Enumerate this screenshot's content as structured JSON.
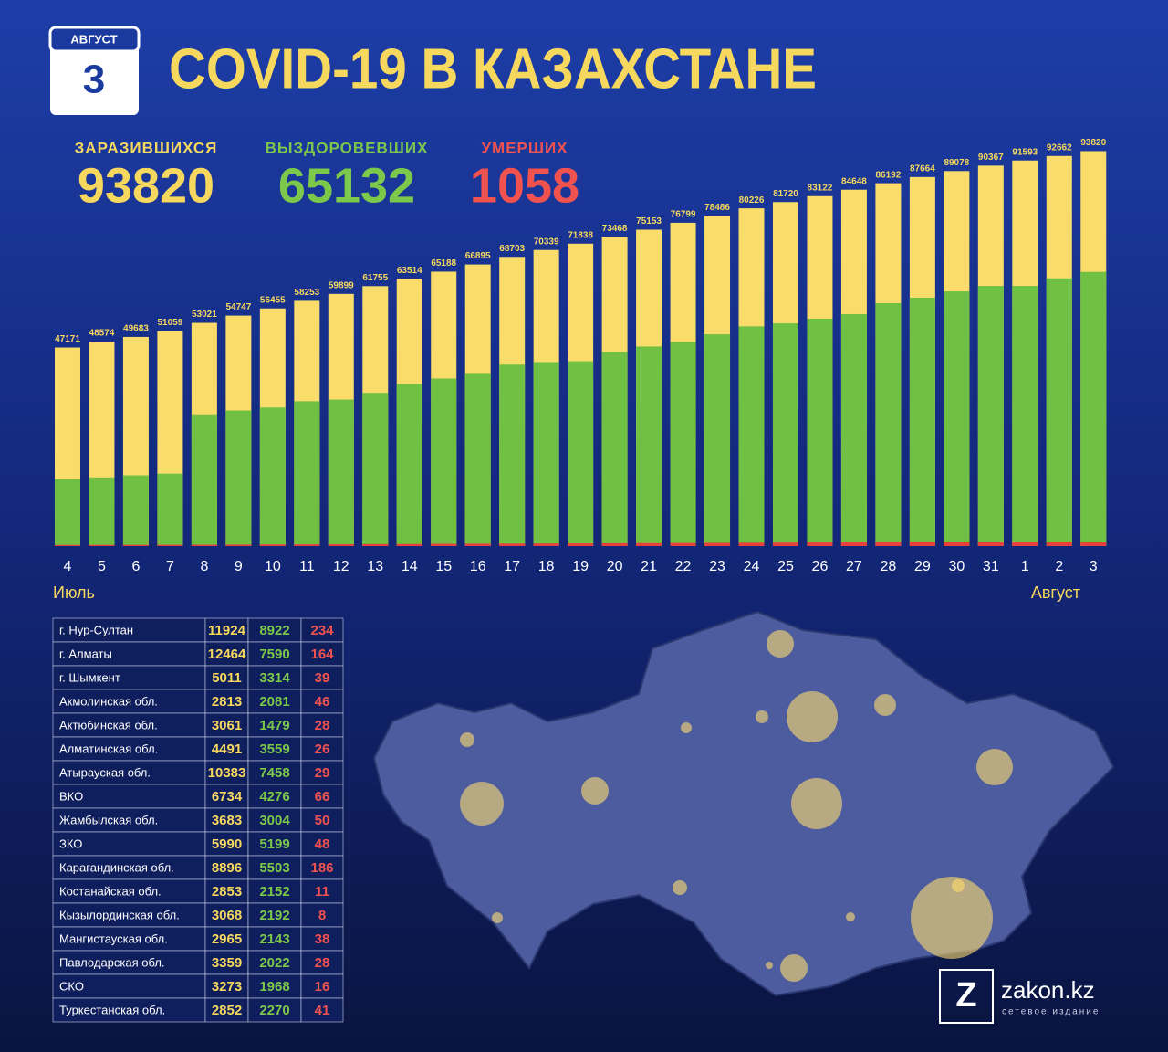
{
  "header": {
    "month": "АВГУСТ",
    "day": "3",
    "title": "COVID-19 В КАЗАХСТАНЕ"
  },
  "summary": [
    {
      "label": "ЗАРАЗИВШИХСЯ",
      "value": 93820,
      "color": "#f7d85e"
    },
    {
      "label": "ВЫЗДОРОВЕВШИХ",
      "value": 65132,
      "color": "#7cc84a"
    },
    {
      "label": "УМЕРШИХ",
      "value": 1058,
      "color": "#f0524f"
    }
  ],
  "chart_data": {
    "type": "bar",
    "categories": [
      "4",
      "5",
      "6",
      "7",
      "8",
      "9",
      "10",
      "11",
      "12",
      "13",
      "14",
      "15",
      "16",
      "17",
      "18",
      "19",
      "20",
      "21",
      "22",
      "23",
      "24",
      "25",
      "26",
      "27",
      "28",
      "29",
      "30",
      "31",
      "1",
      "2",
      "3"
    ],
    "annotations": [
      "Июль",
      "Август"
    ],
    "ylim": [
      0,
      95000
    ],
    "series": [
      {
        "name": "ЗАРАЗИВШИХСЯ",
        "color": "#f9dc6a",
        "labeled": true,
        "values": [
          47171,
          48574,
          49683,
          51059,
          53021,
          54747,
          56455,
          58253,
          59899,
          61755,
          63514,
          65188,
          66895,
          68703,
          70339,
          71838,
          73468,
          75153,
          76799,
          78486,
          80226,
          81720,
          83122,
          84648,
          86192,
          87664,
          89078,
          90367,
          91593,
          92662,
          93820
        ]
      },
      {
        "name": "ВЫЗДОРОВЕВШИХ",
        "color": "#6fc043",
        "values": [
          15900,
          16300,
          16800,
          17200,
          31300,
          32200,
          32900,
          34400,
          34800,
          36400,
          38500,
          39800,
          40900,
          43100,
          43700,
          43900,
          46100,
          47400,
          48500,
          50300,
          52200,
          52900,
          54000,
          55100,
          57700,
          59000,
          60500,
          61800,
          61800,
          63600,
          65132
        ]
      },
      {
        "name": "УМЕРШИХ",
        "color": "#e8403c",
        "values": [
          264,
          275,
          285,
          300,
          320,
          345,
          375,
          410,
          440,
          470,
          500,
          530,
          560,
          585,
          610,
          640,
          670,
          700,
          730,
          760,
          790,
          810,
          840,
          870,
          900,
          930,
          960,
          990,
          1010,
          1035,
          1058
        ]
      }
    ]
  },
  "table": {
    "rows": [
      [
        "г. Нур-Султан",
        11924,
        8922,
        234
      ],
      [
        "г. Алматы",
        12464,
        7590,
        164
      ],
      [
        "г. Шымкент",
        5011,
        3314,
        39
      ],
      [
        "Акмолинская обл.",
        2813,
        2081,
        46
      ],
      [
        "Актюбинская обл.",
        3061,
        1479,
        28
      ],
      [
        "Алматинская обл.",
        4491,
        3559,
        26
      ],
      [
        "Атырауская обл.",
        10383,
        7458,
        29
      ],
      [
        "ВКО",
        6734,
        4276,
        66
      ],
      [
        "Жамбылская обл.",
        3683,
        3004,
        50
      ],
      [
        "ЗКО",
        5990,
        5199,
        48
      ],
      [
        "Карагандинская обл.",
        8896,
        5503,
        186
      ],
      [
        "Костанайская обл.",
        2853,
        2152,
        11
      ],
      [
        "Кызылординская обл.",
        3068,
        2192,
        8
      ],
      [
        "Мангистауская обл.",
        2965,
        2143,
        38
      ],
      [
        "Павлодарская обл.",
        3359,
        2022,
        28
      ],
      [
        "СКО",
        3273,
        1968,
        16
      ],
      [
        "Туркестанская обл.",
        2852,
        2270,
        41
      ]
    ]
  },
  "logo": {
    "name": "zakon.kz",
    "tagline": "сетевое издание"
  }
}
